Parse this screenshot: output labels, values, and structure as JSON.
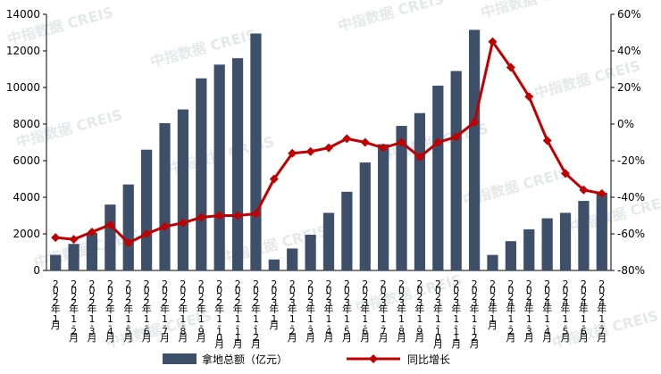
{
  "watermark": "中指数据 CREIS",
  "chart_data": {
    "type": "bar+line",
    "categories": [
      "2022年1月",
      "2022年1-2月",
      "2022年1-3月",
      "2022年1-4月",
      "2022年1-5月",
      "2022年1-6月",
      "2022年1-7月",
      "2022年1-8月",
      "2022年1-9月",
      "2022年1-10月",
      "2022年1-11月",
      "2022年1-12月",
      "2023年1月",
      "2023年1-2月",
      "2023年1-3月",
      "2023年1-4月",
      "2023年1-5月",
      "2023年1-6月",
      "2023年1-7月",
      "2023年1-8月",
      "2023年1-9月",
      "2023年1-10月",
      "2023年1-11月",
      "2023年1-12月",
      "2024年1月",
      "2024年1-2月",
      "2024年1-3月",
      "2024年1-4月",
      "2024年1-5月",
      "2024年1-6月",
      "2024年1-7月"
    ],
    "series": [
      {
        "name": "拿地总额（亿元）",
        "type": "bar",
        "axis": "left",
        "color": "#3d4f69",
        "values": [
          850,
          1450,
          2050,
          3600,
          4700,
          6600,
          8050,
          8800,
          10500,
          11250,
          11600,
          12950,
          600,
          1200,
          1950,
          3150,
          4300,
          5900,
          6900,
          7900,
          8600,
          10100,
          10900,
          13150,
          850,
          1600,
          2250,
          2850,
          3150,
          3800,
          4250
        ]
      },
      {
        "name": "同比增长",
        "type": "line",
        "axis": "right",
        "unit": "%",
        "color": "#c00000",
        "values": [
          -62,
          -63,
          -59,
          -55,
          -65,
          -60,
          -56,
          -54,
          -51,
          -50,
          -50,
          -49,
          -30,
          -16,
          -15,
          -13,
          -8,
          -10,
          -13,
          -10,
          -18,
          -10,
          -7,
          1,
          45,
          31,
          15,
          -9,
          -27,
          -36,
          -38
        ]
      }
    ],
    "left_axis": {
      "min": 0,
      "max": 14000,
      "step": 2000,
      "ticks": [
        "0",
        "2000",
        "4000",
        "6000",
        "8000",
        "10000",
        "12000",
        "14000"
      ]
    },
    "right_axis": {
      "min": -80,
      "max": 60,
      "step": 20,
      "ticks": [
        "-80%",
        "-60%",
        "-40%",
        "-20%",
        "0%",
        "20%",
        "40%",
        "60%"
      ]
    },
    "grid": false,
    "legend_position": "bottom"
  }
}
